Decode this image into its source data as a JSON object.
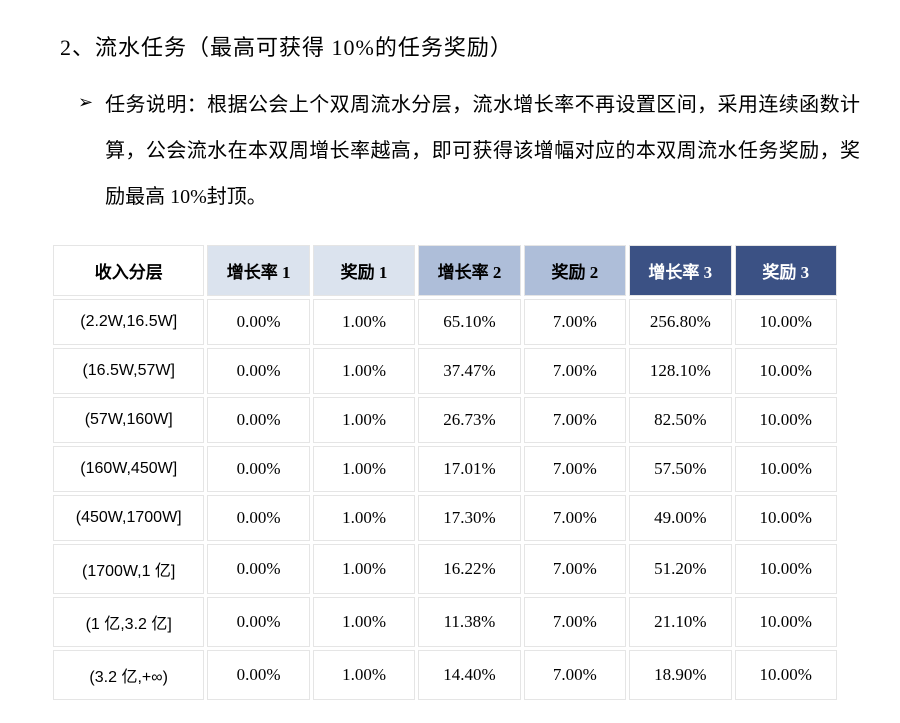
{
  "section": {
    "number": "2、",
    "title": "流水任务（最高可获得 10%的任务奖励）"
  },
  "description": {
    "bullet": "➢",
    "label": "任务说明：",
    "body": "根据公会上个双周流水分层，流水增长率不再设置区间，采用连续函数计算，公会流水在本双周增长率越高，即可获得该增幅对应的本双周流水任务奖励，奖励最高 10%封顶。"
  },
  "table": {
    "headers": [
      {
        "label": "收入分层",
        "bg": "#ffffff",
        "fg": "#000000"
      },
      {
        "label": "增长率 1",
        "bg": "#dbe3ee",
        "fg": "#000000"
      },
      {
        "label": "奖励 1",
        "bg": "#dbe3ee",
        "fg": "#000000"
      },
      {
        "label": "增长率 2",
        "bg": "#aebed9",
        "fg": "#000000"
      },
      {
        "label": "奖励 2",
        "bg": "#aebed9",
        "fg": "#000000"
      },
      {
        "label": "增长率 3",
        "bg": "#3b5184",
        "fg": "#ffffff"
      },
      {
        "label": "奖励 3",
        "bg": "#3b5184",
        "fg": "#ffffff"
      }
    ],
    "rows": [
      {
        "tier": "(2.2W,16.5W]",
        "g1": "0.00%",
        "r1": "1.00%",
        "g2": "65.10%",
        "r2": "7.00%",
        "g3": "256.80%",
        "r3": "10.00%"
      },
      {
        "tier": "(16.5W,57W]",
        "g1": "0.00%",
        "r1": "1.00%",
        "g2": "37.47%",
        "r2": "7.00%",
        "g3": "128.10%",
        "r3": "10.00%"
      },
      {
        "tier": "(57W,160W]",
        "g1": "0.00%",
        "r1": "1.00%",
        "g2": "26.73%",
        "r2": "7.00%",
        "g3": "82.50%",
        "r3": "10.00%"
      },
      {
        "tier": "(160W,450W]",
        "g1": "0.00%",
        "r1": "1.00%",
        "g2": "17.01%",
        "r2": "7.00%",
        "g3": "57.50%",
        "r3": "10.00%"
      },
      {
        "tier": "(450W,1700W]",
        "g1": "0.00%",
        "r1": "1.00%",
        "g2": "17.30%",
        "r2": "7.00%",
        "g3": "49.00%",
        "r3": "10.00%"
      },
      {
        "tier": "(1700W,1 亿]",
        "g1": "0.00%",
        "r1": "1.00%",
        "g2": "16.22%",
        "r2": "7.00%",
        "g3": "51.20%",
        "r3": "10.00%"
      },
      {
        "tier": "(1 亿,3.2 亿]",
        "g1": "0.00%",
        "r1": "1.00%",
        "g2": "11.38%",
        "r2": "7.00%",
        "g3": "21.10%",
        "r3": "10.00%"
      },
      {
        "tier": "(3.2 亿,+∞)",
        "g1": "0.00%",
        "r1": "1.00%",
        "g2": "14.40%",
        "r2": "7.00%",
        "g3": "18.90%",
        "r3": "10.00%"
      }
    ]
  },
  "styles": {
    "row_border_color": "#e5e5e5"
  }
}
